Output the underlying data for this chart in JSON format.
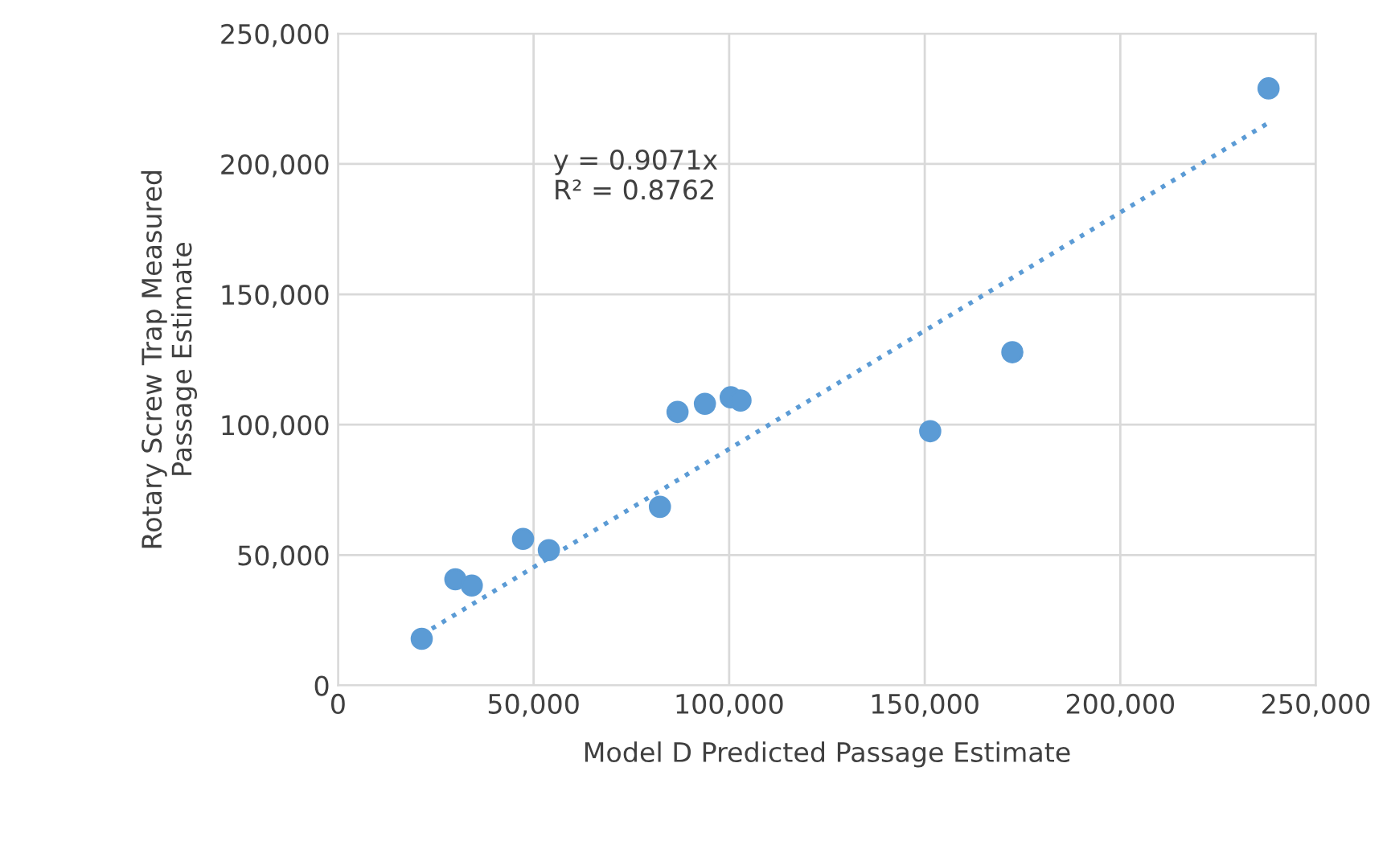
{
  "chart_data": {
    "type": "scatter",
    "xlabel": "Model D Predicted Passage Estimate",
    "ylabel": "Rotary Screw Trap Measured\nPassage Estimate",
    "series": [
      {
        "type": "scatter",
        "color": "#5b9bd5",
        "marker": "circle",
        "x": [
          21400,
          30000,
          34200,
          47300,
          53900,
          82300,
          86800,
          93800,
          100400,
          102900,
          151400,
          172400,
          237900
        ],
        "values": [
          17900,
          40700,
          38300,
          56200,
          51900,
          68500,
          104900,
          108000,
          110500,
          109300,
          97500,
          127800,
          229000
        ]
      },
      {
        "type": "line",
        "color": "#5b9bd5",
        "line_style": "dotted",
        "marker": "none",
        "x": [
          21400,
          237900
        ],
        "values": [
          19400,
          215800
        ]
      }
    ],
    "annotations": [
      "y = 0.9071x\nR² = 0.8762"
    ],
    "xlim": [
      0,
      250000
    ],
    "xticks": [
      {
        "value": 0,
        "label": "0"
      },
      {
        "value": 50000,
        "label": "50,000"
      },
      {
        "value": 100000,
        "label": "100,000"
      },
      {
        "value": 150000,
        "label": "150,000"
      },
      {
        "value": 200000,
        "label": "200,000"
      },
      {
        "value": 250000,
        "label": "250,000"
      }
    ],
    "ylim": [
      0,
      250000
    ],
    "yticks": [
      {
        "value": 0,
        "label": "0"
      },
      {
        "value": 50000,
        "label": "50,000"
      },
      {
        "value": 100000,
        "label": "100,000"
      },
      {
        "value": 150000,
        "label": "150,000"
      },
      {
        "value": 200000,
        "label": "200,000"
      },
      {
        "value": 250000,
        "label": "250,000"
      }
    ],
    "grid": true
  }
}
